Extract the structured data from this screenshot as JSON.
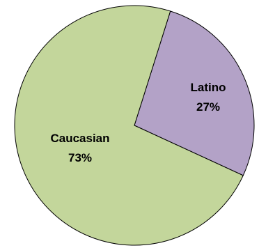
{
  "chart_data": {
    "type": "pie",
    "title": "",
    "slices": [
      {
        "name": "Latino",
        "value": 27,
        "percent_label": "27%",
        "color": "#B3A2C7"
      },
      {
        "name": "Caucasian",
        "value": 73,
        "percent_label": "73%",
        "color": "#C3D69B"
      }
    ],
    "start_angle_deg": 17.5,
    "direction": "clockwise",
    "legend": "none",
    "border_color": "#000000"
  }
}
